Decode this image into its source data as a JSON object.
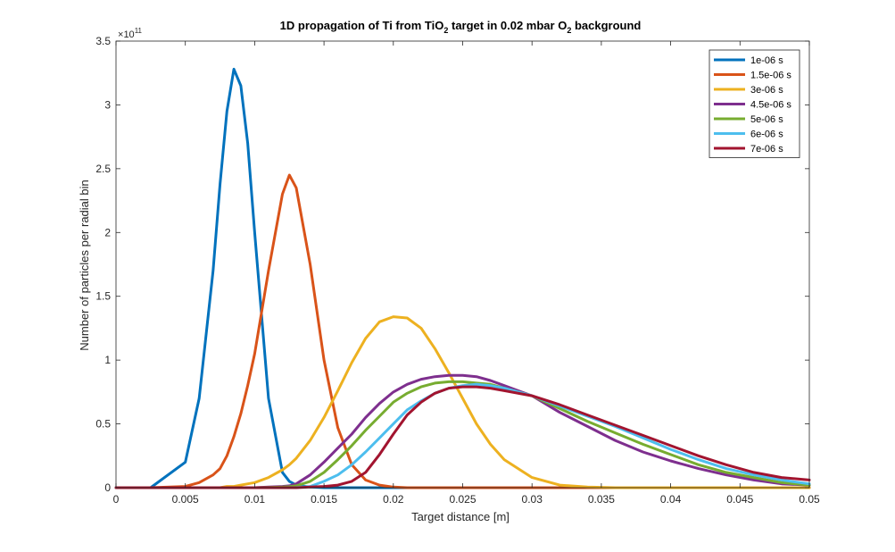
{
  "chart_data": {
    "type": "line",
    "title": {
      "parts": [
        "1D propagation of Ti from TiO",
        "2",
        " target in 0.02 mbar O",
        "2",
        " background"
      ]
    },
    "xlabel": "Target distance [m]",
    "ylabel": "Number of particles per radial bin",
    "y_exponent_base": "10",
    "y_exponent_power": "11",
    "xlim": [
      0,
      0.05
    ],
    "ylim": [
      0,
      3.5
    ],
    "x_ticks": [
      0,
      0.005,
      0.01,
      0.015,
      0.02,
      0.025,
      0.03,
      0.035,
      0.04,
      0.045,
      0.05
    ],
    "x_tick_labels": [
      "0",
      "0.005",
      "0.01",
      "0.015",
      "0.02",
      "0.025",
      "0.03",
      "0.035",
      "0.04",
      "0.045",
      "0.05"
    ],
    "y_ticks": [
      0,
      0.5,
      1,
      1.5,
      2,
      2.5,
      3,
      3.5
    ],
    "y_tick_labels": [
      "0",
      "0.5",
      "1",
      "1.5",
      "2",
      "2.5",
      "3",
      "3.5"
    ],
    "y_units": "x 10^11 particles",
    "grid": false,
    "legend_position": "top-right",
    "x": [
      0,
      0.0025,
      0.005,
      0.006,
      0.007,
      0.0075,
      0.008,
      0.0085,
      0.009,
      0.0095,
      0.01,
      0.011,
      0.012,
      0.0125,
      0.013,
      0.014,
      0.015,
      0.016,
      0.017,
      0.018,
      0.019,
      0.02,
      0.021,
      0.022,
      0.023,
      0.024,
      0.025,
      0.026,
      0.027,
      0.028,
      0.03,
      0.032,
      0.034,
      0.036,
      0.038,
      0.04,
      0.042,
      0.044,
      0.046,
      0.048,
      0.05
    ],
    "series": [
      {
        "name": "1e-06 s",
        "color": "#0072BD",
        "values": [
          0,
          0,
          0.2,
          0.7,
          1.7,
          2.38,
          2.95,
          3.28,
          3.15,
          2.7,
          2.0,
          0.7,
          0.12,
          0.05,
          0.02,
          0.005,
          0,
          0,
          0,
          0,
          0,
          0,
          0,
          0,
          0,
          0,
          0,
          0,
          0,
          0,
          0,
          0,
          0,
          0,
          0,
          0,
          0,
          0,
          0,
          0,
          0
        ]
      },
      {
        "name": "1.5e-06 s",
        "color": "#D95319",
        "values": [
          0,
          0,
          0.01,
          0.04,
          0.1,
          0.15,
          0.25,
          0.4,
          0.58,
          0.8,
          1.05,
          1.7,
          2.3,
          2.45,
          2.35,
          1.75,
          1.0,
          0.47,
          0.18,
          0.06,
          0.02,
          0.005,
          0,
          0,
          0,
          0,
          0,
          0,
          0,
          0,
          0,
          0,
          0,
          0,
          0,
          0,
          0,
          0,
          0,
          0,
          0
        ]
      },
      {
        "name": "3e-06 s",
        "color": "#EDB120",
        "values": [
          0,
          0,
          0,
          0,
          0,
          0,
          0.01,
          0.01,
          0.02,
          0.03,
          0.04,
          0.08,
          0.14,
          0.18,
          0.23,
          0.37,
          0.55,
          0.76,
          0.98,
          1.17,
          1.3,
          1.34,
          1.33,
          1.25,
          1.09,
          0.9,
          0.7,
          0.5,
          0.34,
          0.22,
          0.08,
          0.02,
          0.005,
          0,
          0,
          0,
          0,
          0,
          0,
          0,
          0
        ]
      },
      {
        "name": "4.5e-06 s",
        "color": "#7E2F8E",
        "values": [
          0,
          0,
          0,
          0,
          0,
          0,
          0,
          0,
          0,
          0,
          0,
          0.005,
          0.01,
          0.015,
          0.03,
          0.1,
          0.2,
          0.31,
          0.42,
          0.55,
          0.66,
          0.75,
          0.81,
          0.85,
          0.87,
          0.88,
          0.88,
          0.87,
          0.84,
          0.8,
          0.72,
          0.59,
          0.48,
          0.37,
          0.28,
          0.21,
          0.15,
          0.1,
          0.06,
          0.03,
          0.02
        ]
      },
      {
        "name": "5e-06 s",
        "color": "#77AC30",
        "values": [
          0,
          0,
          0,
          0,
          0,
          0,
          0,
          0,
          0,
          0,
          0,
          0.002,
          0.005,
          0.008,
          0.015,
          0.05,
          0.12,
          0.22,
          0.33,
          0.45,
          0.56,
          0.67,
          0.74,
          0.79,
          0.82,
          0.83,
          0.83,
          0.82,
          0.81,
          0.78,
          0.72,
          0.62,
          0.52,
          0.43,
          0.34,
          0.26,
          0.18,
          0.12,
          0.08,
          0.04,
          0.02
        ]
      },
      {
        "name": "6e-06 s",
        "color": "#4DBEEE",
        "values": [
          0,
          0,
          0,
          0,
          0,
          0,
          0,
          0,
          0,
          0,
          0,
          0,
          0,
          0,
          0.002,
          0.01,
          0.05,
          0.1,
          0.18,
          0.28,
          0.39,
          0.5,
          0.61,
          0.68,
          0.74,
          0.78,
          0.8,
          0.81,
          0.8,
          0.78,
          0.72,
          0.64,
          0.56,
          0.48,
          0.39,
          0.3,
          0.22,
          0.15,
          0.1,
          0.06,
          0.03
        ]
      },
      {
        "name": "7e-06 s",
        "color": "#A2142F",
        "values": [
          0,
          0,
          0,
          0,
          0,
          0,
          0,
          0,
          0,
          0,
          0,
          0,
          0,
          0,
          0,
          0.005,
          0.01,
          0.02,
          0.05,
          0.12,
          0.26,
          0.42,
          0.57,
          0.67,
          0.74,
          0.78,
          0.79,
          0.79,
          0.78,
          0.76,
          0.72,
          0.65,
          0.57,
          0.49,
          0.41,
          0.33,
          0.25,
          0.18,
          0.12,
          0.08,
          0.06
        ]
      }
    ]
  }
}
